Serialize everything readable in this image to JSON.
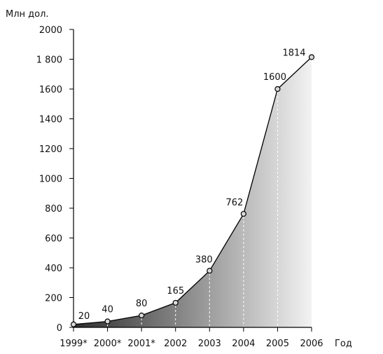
{
  "chart_data": {
    "type": "area",
    "ylabel": "Млн дол.",
    "xlabel": "Год",
    "categories": [
      "1999*",
      "2000*",
      "2001*",
      "2002",
      "2003",
      "2004",
      "2005",
      "2006"
    ],
    "values": [
      20,
      40,
      80,
      165,
      380,
      762,
      1600,
      1814
    ],
    "data_labels": [
      "20",
      "40",
      "80",
      "165",
      "380",
      "762",
      "1600",
      "1814"
    ],
    "ylim": [
      0,
      2000
    ],
    "yticks": [
      0,
      200,
      400,
      600,
      800,
      1000,
      1200,
      1400,
      1600,
      1800,
      2000
    ],
    "ytick_labels": [
      "0",
      "200",
      "400",
      "600",
      "800",
      "1000",
      "1200",
      "1400",
      "1600",
      "1 800",
      "2000"
    ],
    "grid": false,
    "fill_colors": {
      "dark": "#2e2e2e",
      "light": "#f2f2f2"
    },
    "line_color": "#000000",
    "marker_fill": "#d9d9d9"
  }
}
